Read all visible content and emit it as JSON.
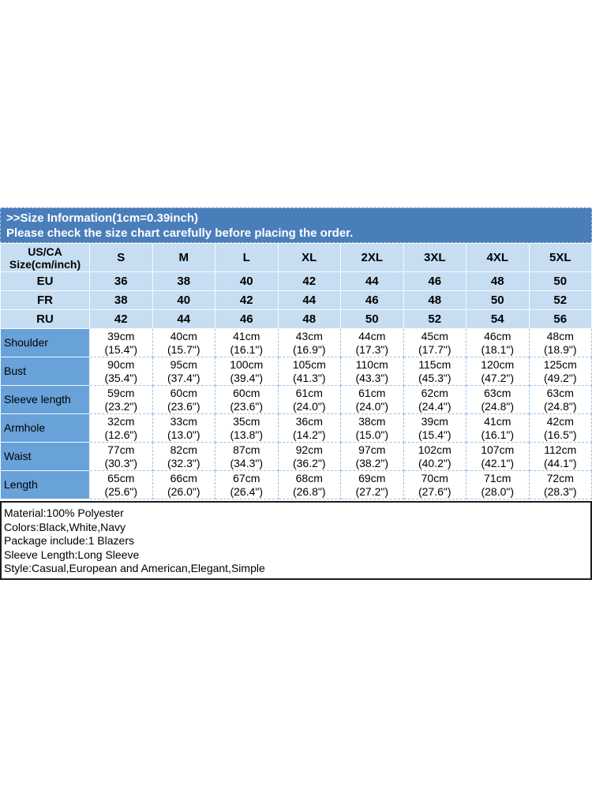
{
  "banner": {
    "line1": ">>Size Information(1cm=0.39inch)",
    "line2": "Please check the size chart carefully before placing the order."
  },
  "table": {
    "corner_header": {
      "line1": "US/CA",
      "line2": "Size(cm/inch)"
    },
    "size_labels": [
      "S",
      "M",
      "L",
      "XL",
      "2XL",
      "3XL",
      "4XL",
      "5XL"
    ],
    "region_rows": [
      {
        "label": "EU",
        "values": [
          "36",
          "38",
          "40",
          "42",
          "44",
          "46",
          "48",
          "50"
        ]
      },
      {
        "label": "FR",
        "values": [
          "38",
          "40",
          "42",
          "44",
          "46",
          "48",
          "50",
          "52"
        ]
      },
      {
        "label": "RU",
        "values": [
          "42",
          "44",
          "46",
          "48",
          "50",
          "52",
          "54",
          "56"
        ]
      }
    ],
    "measurement_rows": [
      {
        "label": "Shoulder",
        "cells": [
          {
            "cm": "39cm",
            "inch": "(15.4\")"
          },
          {
            "cm": "40cm",
            "inch": "(15.7\")"
          },
          {
            "cm": "41cm",
            "inch": "(16.1\")"
          },
          {
            "cm": "43cm",
            "inch": "(16.9\")"
          },
          {
            "cm": "44cm",
            "inch": "(17.3\")"
          },
          {
            "cm": "45cm",
            "inch": "(17.7\")"
          },
          {
            "cm": "46cm",
            "inch": "(18.1\")"
          },
          {
            "cm": "48cm",
            "inch": "(18.9\")"
          }
        ]
      },
      {
        "label": "Bust",
        "cells": [
          {
            "cm": "90cm",
            "inch": "(35.4\")"
          },
          {
            "cm": "95cm",
            "inch": "(37.4\")"
          },
          {
            "cm": "100cm",
            "inch": "(39.4\")"
          },
          {
            "cm": "105cm",
            "inch": "(41.3\")"
          },
          {
            "cm": "110cm",
            "inch": "(43.3\")"
          },
          {
            "cm": "115cm",
            "inch": "(45.3\")"
          },
          {
            "cm": "120cm",
            "inch": "(47.2\")"
          },
          {
            "cm": "125cm",
            "inch": "(49.2\")"
          }
        ]
      },
      {
        "label": "Sleeve length",
        "cells": [
          {
            "cm": "59cm",
            "inch": "(23.2\")"
          },
          {
            "cm": "60cm",
            "inch": "(23.6\")"
          },
          {
            "cm": "60cm",
            "inch": "(23.6\")"
          },
          {
            "cm": "61cm",
            "inch": "(24.0\")"
          },
          {
            "cm": "61cm",
            "inch": "(24.0\")"
          },
          {
            "cm": "62cm",
            "inch": "(24.4\")"
          },
          {
            "cm": "63cm",
            "inch": "(24.8\")"
          },
          {
            "cm": "63cm",
            "inch": "(24.8\")"
          }
        ]
      },
      {
        "label": "Armhole",
        "cells": [
          {
            "cm": "32cm",
            "inch": "(12.6\")"
          },
          {
            "cm": "33cm",
            "inch": "(13.0\")"
          },
          {
            "cm": "35cm",
            "inch": "(13.8\")"
          },
          {
            "cm": "36cm",
            "inch": "(14.2\")"
          },
          {
            "cm": "38cm",
            "inch": "(15.0\")"
          },
          {
            "cm": "39cm",
            "inch": "(15.4\")"
          },
          {
            "cm": "41cm",
            "inch": "(16.1\")"
          },
          {
            "cm": "42cm",
            "inch": "(16.5\")"
          }
        ]
      },
      {
        "label": "Waist",
        "cells": [
          {
            "cm": "77cm",
            "inch": "(30.3\")"
          },
          {
            "cm": "82cm",
            "inch": "(32.3\")"
          },
          {
            "cm": "87cm",
            "inch": "(34.3\")"
          },
          {
            "cm": "92cm",
            "inch": "(36.2\")"
          },
          {
            "cm": "97cm",
            "inch": "(38.2\")"
          },
          {
            "cm": "102cm",
            "inch": "(40.2\")"
          },
          {
            "cm": "107cm",
            "inch": "(42.1\")"
          },
          {
            "cm": "112cm",
            "inch": "(44.1\")"
          }
        ]
      },
      {
        "label": "Length",
        "cells": [
          {
            "cm": "65cm",
            "inch": "(25.6\")"
          },
          {
            "cm": "66cm",
            "inch": "(26.0\")"
          },
          {
            "cm": "67cm",
            "inch": "(26.4\")"
          },
          {
            "cm": "68cm",
            "inch": "(26.8\")"
          },
          {
            "cm": "69cm",
            "inch": "(27.2\")"
          },
          {
            "cm": "70cm",
            "inch": "(27.6\")"
          },
          {
            "cm": "71cm",
            "inch": "(28.0\")"
          },
          {
            "cm": "72cm",
            "inch": "(28.3\")"
          }
        ]
      }
    ]
  },
  "details": {
    "lines": [
      "Material:100% Polyester",
      "Colors:Black,White,Navy",
      "Package include:1 Blazers",
      "Sleeve Length:Long Sleeve",
      "Style:Casual,European and American,Elegant,Simple"
    ]
  },
  "colors": {
    "banner_blue": "#4a7ebb",
    "light_row_blue": "#c7ddf1",
    "measure_label_blue": "#68a2d9",
    "grid_dash_blue": "#9fc3e6",
    "details_border": "#1c1c1c"
  }
}
